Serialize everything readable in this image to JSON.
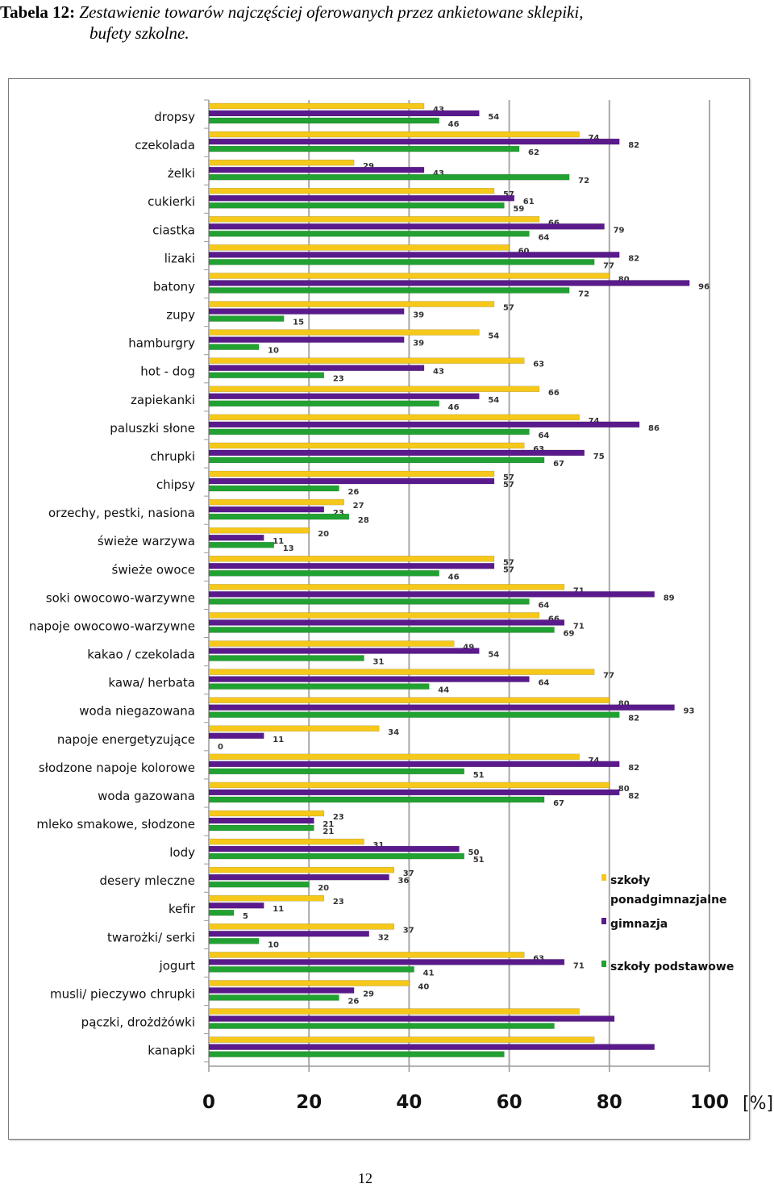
{
  "caption": {
    "lead": "Tabela 12:",
    "line1": "Zestawienie towarów najczęściej oferowanych przez ankietowane sklepiki,",
    "line2": "bufety szkolne."
  },
  "page_number": "12",
  "colors": {
    "ponad": "#f6c81a",
    "gim": "#5a1a8c",
    "pod": "#21a131",
    "grid": "#a9a9a9",
    "axis": "#9a9a9a"
  },
  "chart_data": {
    "type": "bar",
    "orientation": "horizontal",
    "categories": [
      "dropsy",
      "czekolada",
      "żelki",
      "cukierki",
      "ciastka",
      "lizaki",
      "batony",
      "zupy",
      "hamburgry",
      "hot - dog",
      "zapiekanki",
      "paluszki słone",
      "chrupki",
      "chipsy",
      "orzechy, pestki, nasiona",
      "świeże warzywa",
      "świeże owoce",
      "soki owocowo-warzywne",
      "napoje owocowo-warzywne",
      "kakao / czekolada",
      "kawa/ herbata",
      "woda niegazowana",
      "napoje energetyzujące",
      "słodzone napoje kolorowe",
      "woda gazowana",
      "mleko smakowe, słodzone",
      "lody",
      "desery mleczne",
      "kefir",
      "twarożki/ serki",
      "jogurt",
      "musli/ pieczywo chrupki",
      "pączki, drożdżówki",
      "kanapki"
    ],
    "series": [
      {
        "name": "szkoły ponadgimnazjalne",
        "color": "#f6c81a",
        "values": [
          43,
          74,
          29,
          57,
          66,
          60,
          80,
          57,
          54,
          63,
          66,
          74,
          63,
          57,
          27,
          20,
          57,
          71,
          66,
          49,
          77,
          80,
          34,
          74,
          80,
          23,
          31,
          37,
          23,
          37,
          63,
          40,
          74,
          77
        ]
      },
      {
        "name": "gimnazja",
        "color": "#5a1a8c",
        "values": [
          54,
          82,
          43,
          61,
          79,
          82,
          96,
          39,
          39,
          43,
          54,
          86,
          75,
          57,
          23,
          11,
          57,
          89,
          71,
          54,
          64,
          93,
          11,
          82,
          82,
          21,
          50,
          36,
          11,
          32,
          71,
          29,
          81,
          89
        ]
      },
      {
        "name": "szkoły podstawowe",
        "color": "#21a131",
        "values": [
          46,
          62,
          72,
          59,
          64,
          77,
          72,
          15,
          10,
          23,
          46,
          64,
          67,
          26,
          28,
          13,
          46,
          64,
          69,
          31,
          44,
          82,
          0,
          51,
          67,
          21,
          51,
          20,
          5,
          10,
          41,
          26,
          69,
          59
        ]
      }
    ],
    "data_labels": [
      [
        "43",
        "74",
        "29",
        "57",
        "66",
        "60",
        "80",
        "57",
        "54",
        "63",
        "66",
        "74",
        "63",
        "57",
        "27",
        "20",
        "57",
        "71",
        "66",
        "49",
        "77",
        "80",
        "34",
        "74",
        "80",
        "23",
        "31",
        "37",
        "23",
        "37",
        "63",
        "40",
        "",
        ""
      ],
      [
        "54",
        "82",
        "43",
        "61",
        "79",
        "82",
        "96",
        "39",
        "39",
        "43",
        "54",
        "86",
        "75",
        "57",
        "23",
        "11",
        "57",
        "89",
        "71",
        "54",
        "64",
        "93",
        "11",
        "82",
        "82",
        "21",
        "50",
        "36",
        "11",
        "32",
        "71",
        "29",
        "",
        ""
      ],
      [
        "46",
        "62",
        "72",
        "59",
        "64",
        "77",
        "72",
        "15",
        "10",
        "23",
        "46",
        "64",
        "67",
        "26",
        "28",
        "13",
        "46",
        "64",
        "69",
        "31",
        "44",
        "82",
        "0",
        "51",
        "67",
        "21",
        "51",
        "20",
        "5",
        "10",
        "41",
        "26",
        "",
        ""
      ]
    ],
    "x_ticks": [
      "0",
      "20",
      "40",
      "60",
      "80",
      "100"
    ],
    "xlim": [
      0,
      100
    ],
    "x_unit": "[%]",
    "grid": true,
    "legend": "right"
  }
}
